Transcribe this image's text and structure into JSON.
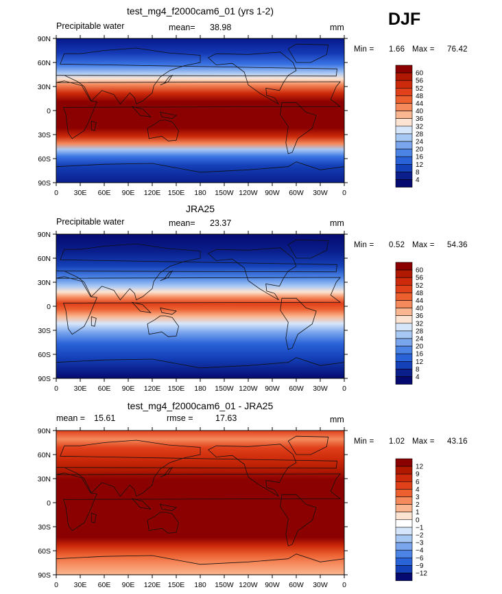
{
  "season": "DJF",
  "lat_ticks": [
    "90N",
    "60N",
    "30N",
    "0",
    "30S",
    "60S",
    "90S"
  ],
  "lon_ticks": [
    "0",
    "30E",
    "60E",
    "90E",
    "120E",
    "150E",
    "180",
    "150W",
    "120W",
    "90W",
    "60W",
    "30W",
    "0"
  ],
  "panels": [
    {
      "title": "test_mg4_f2000cam6_01 (yrs 1-2)",
      "left_label": "Precipitable water",
      "stat_label": "mean=",
      "stat_value": "38.98",
      "stat2_label": "",
      "stat2_value": "",
      "units": "mm",
      "min_label": "Min =",
      "min_value": "1.66",
      "max_label": "Max =",
      "max_value": "76.42",
      "palette": "abs",
      "levels": [
        "60",
        "56",
        "52",
        "48",
        "44",
        "40",
        "36",
        "32",
        "28",
        "24",
        "20",
        "16",
        "12",
        "8",
        "4"
      ]
    },
    {
      "title": "JRA25",
      "left_label": "Precipitable water",
      "stat_label": "mean=",
      "stat_value": "23.37",
      "stat2_label": "",
      "stat2_value": "",
      "units": "mm",
      "min_label": "Min =",
      "min_value": "0.52",
      "max_label": "Max =",
      "max_value": "54.36",
      "palette": "abs",
      "levels": [
        "60",
        "56",
        "52",
        "48",
        "44",
        "40",
        "36",
        "32",
        "28",
        "24",
        "20",
        "16",
        "12",
        "8",
        "4"
      ]
    },
    {
      "title": "test_mg4_f2000cam6_01 - JRA25",
      "left_label": "mean =",
      "stat_label": "",
      "stat_value": "15.61",
      "stat2_label": "rmse =",
      "stat2_value": "17.63",
      "units": "mm",
      "min_label": "Min =",
      "min_value": "1.02",
      "max_label": "Max =",
      "max_value": "43.16",
      "palette": "diff",
      "levels": [
        "12",
        "9",
        "6",
        "4",
        "3",
        "2",
        "1",
        "0",
        "−1",
        "−2",
        "−3",
        "−4",
        "−6",
        "−9",
        "−12"
      ]
    }
  ],
  "colors": {
    "abs_palette": [
      "#8b0000",
      "#b01800",
      "#cc2a0a",
      "#e0401a",
      "#ec6030",
      "#f58a5c",
      "#fab690",
      "#fde4d2",
      "#d6e6fa",
      "#a8c8f4",
      "#7aa6ee",
      "#4c84e6",
      "#2a62d8",
      "#1440b8",
      "#0a1e8c",
      "#050a70"
    ],
    "diff_palette": [
      "#8b0000",
      "#b01800",
      "#cc2a0a",
      "#e0401a",
      "#ec6030",
      "#f58a5c",
      "#fab690",
      "#fde4d2",
      "#ffffff",
      "#d6e6fa",
      "#a8c8f4",
      "#7aa6ee",
      "#4c84e6",
      "#2a62d8",
      "#1440b8",
      "#050a70"
    ]
  }
}
